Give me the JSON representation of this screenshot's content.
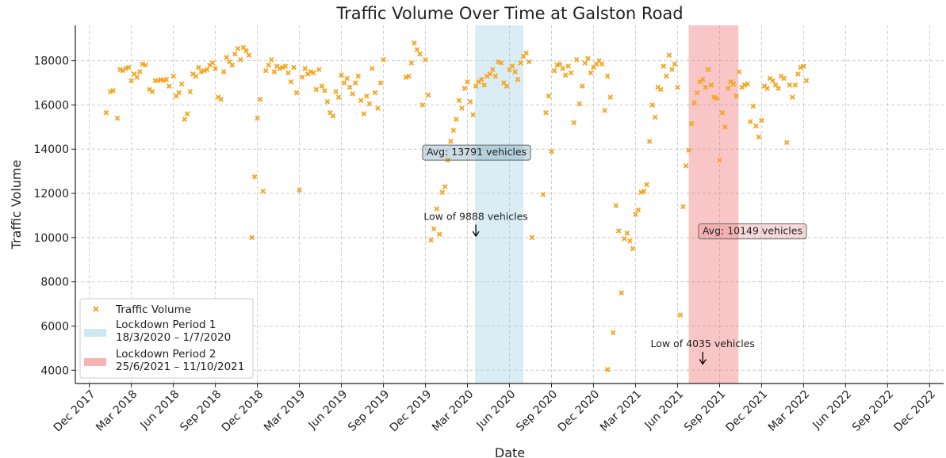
{
  "chart_data": {
    "type": "scatter",
    "title": "Traffic Volume Over Time at Galston Road",
    "xlabel": "Date",
    "ylabel": "Traffic Volume",
    "ylim": [
      3400,
      19600
    ],
    "xlim_months": [
      -1.0,
      61.0
    ],
    "y_ticks": [
      4000,
      6000,
      8000,
      10000,
      12000,
      14000,
      16000,
      18000
    ],
    "x_ticks": [
      {
        "label": "Dec 2017",
        "m": 0
      },
      {
        "label": "Mar 2018",
        "m": 3
      },
      {
        "label": "Jun 2018",
        "m": 6
      },
      {
        "label": "Sep 2018",
        "m": 9
      },
      {
        "label": "Dec 2018",
        "m": 12
      },
      {
        "label": "Mar 2019",
        "m": 15
      },
      {
        "label": "Jun 2019",
        "m": 18
      },
      {
        "label": "Sep 2019",
        "m": 21
      },
      {
        "label": "Dec 2019",
        "m": 24
      },
      {
        "label": "Mar 2020",
        "m": 27
      },
      {
        "label": "Jun 2020",
        "m": 30
      },
      {
        "label": "Sep 2020",
        "m": 33
      },
      {
        "label": "Dec 2020",
        "m": 36
      },
      {
        "label": "Mar 2021",
        "m": 39
      },
      {
        "label": "Jun 2021",
        "m": 42
      },
      {
        "label": "Sep 2021",
        "m": 45
      },
      {
        "label": "Dec 2021",
        "m": 48
      },
      {
        "label": "Mar 2022",
        "m": 51
      },
      {
        "label": "Jun 2022",
        "m": 54
      },
      {
        "label": "Sep 2022",
        "m": 57
      },
      {
        "label": "Dec 2022",
        "m": 60
      }
    ],
    "series": [
      {
        "name": "Traffic Volume",
        "color": "#F5A623",
        "marker": "x",
        "points": [
          [
            1.2,
            15650
          ],
          [
            1.5,
            16600
          ],
          [
            1.7,
            16650
          ],
          [
            2.0,
            15400
          ],
          [
            2.2,
            17600
          ],
          [
            2.4,
            17550
          ],
          [
            2.6,
            17650
          ],
          [
            2.8,
            17700
          ],
          [
            3.0,
            17100
          ],
          [
            3.2,
            17400
          ],
          [
            3.4,
            17250
          ],
          [
            3.6,
            17500
          ],
          [
            3.8,
            17850
          ],
          [
            4.0,
            17800
          ],
          [
            4.3,
            16700
          ],
          [
            4.5,
            16600
          ],
          [
            4.7,
            17100
          ],
          [
            4.9,
            17100
          ],
          [
            5.1,
            17150
          ],
          [
            5.3,
            17100
          ],
          [
            5.5,
            17150
          ],
          [
            5.7,
            16850
          ],
          [
            6.0,
            17300
          ],
          [
            6.2,
            16400
          ],
          [
            6.4,
            16550
          ],
          [
            6.6,
            16950
          ],
          [
            6.8,
            15350
          ],
          [
            7.0,
            15600
          ],
          [
            7.2,
            16600
          ],
          [
            7.4,
            17400
          ],
          [
            7.6,
            17300
          ],
          [
            7.8,
            17700
          ],
          [
            8.0,
            17500
          ],
          [
            8.2,
            17550
          ],
          [
            8.4,
            17600
          ],
          [
            8.6,
            17800
          ],
          [
            8.8,
            17900
          ],
          [
            9.0,
            17650
          ],
          [
            9.2,
            16350
          ],
          [
            9.4,
            16250
          ],
          [
            9.6,
            17500
          ],
          [
            9.8,
            18150
          ],
          [
            10.0,
            17950
          ],
          [
            10.2,
            17800
          ],
          [
            10.4,
            18300
          ],
          [
            10.6,
            18550
          ],
          [
            10.8,
            18050
          ],
          [
            11.0,
            18600
          ],
          [
            11.2,
            18450
          ],
          [
            11.4,
            18250
          ],
          [
            11.6,
            10000
          ],
          [
            11.8,
            12750
          ],
          [
            12.0,
            15400
          ],
          [
            12.2,
            16250
          ],
          [
            12.4,
            12100
          ],
          [
            12.6,
            17550
          ],
          [
            12.8,
            17800
          ],
          [
            13.0,
            18050
          ],
          [
            13.2,
            17500
          ],
          [
            13.4,
            17750
          ],
          [
            13.6,
            17650
          ],
          [
            13.8,
            17700
          ],
          [
            14.0,
            17750
          ],
          [
            14.2,
            17450
          ],
          [
            14.4,
            17050
          ],
          [
            14.6,
            17700
          ],
          [
            14.8,
            16550
          ],
          [
            15.0,
            12150
          ],
          [
            15.2,
            17250
          ],
          [
            15.4,
            17650
          ],
          [
            15.6,
            17400
          ],
          [
            15.8,
            17500
          ],
          [
            16.0,
            17450
          ],
          [
            16.2,
            16700
          ],
          [
            16.4,
            17600
          ],
          [
            16.6,
            16850
          ],
          [
            16.8,
            16650
          ],
          [
            17.0,
            16150
          ],
          [
            17.2,
            15650
          ],
          [
            17.4,
            15500
          ],
          [
            17.6,
            16600
          ],
          [
            17.8,
            16350
          ],
          [
            18.0,
            17350
          ],
          [
            18.2,
            17000
          ],
          [
            18.4,
            17200
          ],
          [
            18.6,
            16800
          ],
          [
            18.8,
            16500
          ],
          [
            19.0,
            17000
          ],
          [
            19.2,
            17300
          ],
          [
            19.4,
            16200
          ],
          [
            19.6,
            15600
          ],
          [
            19.8,
            16400
          ],
          [
            20.0,
            16050
          ],
          [
            20.2,
            17650
          ],
          [
            20.4,
            16550
          ],
          [
            20.6,
            15850
          ],
          [
            20.8,
            17000
          ],
          [
            21.0,
            18050
          ],
          [
            22.6,
            17250
          ],
          [
            22.8,
            17300
          ],
          [
            23.0,
            17900
          ],
          [
            23.2,
            18800
          ],
          [
            23.4,
            18500
          ],
          [
            23.6,
            18300
          ],
          [
            23.8,
            16000
          ],
          [
            24.0,
            18050
          ],
          [
            24.2,
            16450
          ],
          [
            24.4,
            9888
          ],
          [
            24.6,
            10400
          ],
          [
            24.8,
            11300
          ],
          [
            25.0,
            10150
          ],
          [
            25.2,
            12050
          ],
          [
            25.4,
            12300
          ],
          [
            25.6,
            13500
          ],
          [
            25.8,
            14350
          ],
          [
            26.0,
            14850
          ],
          [
            26.2,
            15350
          ],
          [
            26.4,
            16200
          ],
          [
            26.6,
            15850
          ],
          [
            26.8,
            16750
          ],
          [
            27.0,
            17050
          ],
          [
            27.2,
            16150
          ],
          [
            27.4,
            15550
          ],
          [
            27.6,
            16850
          ],
          [
            27.8,
            17050
          ],
          [
            28.0,
            17150
          ],
          [
            28.2,
            16900
          ],
          [
            28.4,
            17300
          ],
          [
            28.6,
            17400
          ],
          [
            28.8,
            17600
          ],
          [
            29.0,
            17300
          ],
          [
            29.2,
            17950
          ],
          [
            29.4,
            17900
          ],
          [
            29.6,
            17000
          ],
          [
            29.8,
            16850
          ],
          [
            30.0,
            17600
          ],
          [
            30.2,
            17750
          ],
          [
            30.4,
            17500
          ],
          [
            30.6,
            17150
          ],
          [
            30.8,
            17900
          ],
          [
            31.0,
            18200
          ],
          [
            31.2,
            18350
          ],
          [
            31.4,
            17950
          ],
          [
            31.6,
            10000
          ],
          [
            32.4,
            11950
          ],
          [
            32.6,
            15650
          ],
          [
            32.8,
            16400
          ],
          [
            33.0,
            13900
          ],
          [
            33.2,
            17550
          ],
          [
            33.4,
            17800
          ],
          [
            33.6,
            17850
          ],
          [
            33.8,
            17650
          ],
          [
            34.0,
            17350
          ],
          [
            34.2,
            17750
          ],
          [
            34.4,
            17450
          ],
          [
            34.6,
            15200
          ],
          [
            34.8,
            18050
          ],
          [
            35.0,
            16050
          ],
          [
            35.2,
            16850
          ],
          [
            35.4,
            17900
          ],
          [
            35.6,
            18100
          ],
          [
            35.8,
            17450
          ],
          [
            36.0,
            17700
          ],
          [
            36.2,
            17850
          ],
          [
            36.4,
            18000
          ],
          [
            36.6,
            17850
          ],
          [
            36.8,
            15750
          ],
          [
            37.0,
            17300
          ],
          [
            37.2,
            16350
          ],
          [
            37.4,
            5700
          ],
          [
            37.6,
            11450
          ],
          [
            37.8,
            10300
          ],
          [
            38.0,
            7500
          ],
          [
            38.2,
            9950
          ],
          [
            38.4,
            10200
          ],
          [
            38.6,
            9850
          ],
          [
            38.8,
            9500
          ],
          [
            39.0,
            11050
          ],
          [
            39.2,
            11250
          ],
          [
            39.4,
            12050
          ],
          [
            39.6,
            12100
          ],
          [
            39.8,
            12400
          ],
          [
            40.0,
            14350
          ],
          [
            40.2,
            16000
          ],
          [
            40.4,
            15450
          ],
          [
            40.6,
            16800
          ],
          [
            40.8,
            16700
          ],
          [
            41.0,
            17750
          ],
          [
            41.2,
            17300
          ],
          [
            41.4,
            18250
          ],
          [
            41.6,
            17600
          ],
          [
            41.8,
            17850
          ],
          [
            42.0,
            16800
          ],
          [
            42.2,
            6500
          ],
          [
            42.4,
            11400
          ],
          [
            42.6,
            13250
          ],
          [
            42.8,
            13950
          ],
          [
            43.0,
            15150
          ],
          [
            43.2,
            16100
          ],
          [
            43.4,
            16550
          ],
          [
            43.6,
            17050
          ],
          [
            43.8,
            17150
          ],
          [
            44.0,
            16800
          ],
          [
            44.2,
            17600
          ],
          [
            44.4,
            16900
          ],
          [
            44.6,
            16350
          ],
          [
            44.8,
            16300
          ],
          [
            45.0,
            13500
          ],
          [
            45.2,
            15650
          ],
          [
            45.4,
            15000
          ],
          [
            45.6,
            16750
          ],
          [
            45.8,
            17050
          ],
          [
            46.0,
            16950
          ],
          [
            46.2,
            16400
          ],
          [
            46.4,
            17500
          ],
          [
            46.6,
            16800
          ],
          [
            46.8,
            16900
          ],
          [
            47.0,
            16950
          ],
          [
            47.2,
            15250
          ],
          [
            47.4,
            15950
          ],
          [
            47.6,
            15050
          ],
          [
            47.8,
            14550
          ],
          [
            48.0,
            15300
          ],
          [
            48.2,
            16850
          ],
          [
            48.4,
            16750
          ],
          [
            48.6,
            17200
          ],
          [
            48.8,
            17100
          ],
          [
            49.0,
            16900
          ],
          [
            49.2,
            16750
          ],
          [
            49.4,
            17300
          ],
          [
            49.6,
            17200
          ],
          [
            49.8,
            14300
          ],
          [
            50.0,
            16900
          ],
          [
            50.2,
            16350
          ],
          [
            50.4,
            16900
          ],
          [
            50.6,
            17400
          ],
          [
            50.8,
            17700
          ],
          [
            51.0,
            17750
          ],
          [
            51.2,
            17100
          ],
          [
            37.0,
            4035
          ]
        ]
      }
    ],
    "lockdowns": [
      {
        "label": "Lockdown Period 1",
        "dates": "18/3/2020 – 1/7/2020",
        "m_start": 27.55,
        "m_end": 31.0,
        "color": "#ADD8E6",
        "alpha": 0.45
      },
      {
        "label": "Lockdown Period 2",
        "dates": "25/6/2021 – 11/10/2021",
        "m_start": 42.8,
        "m_end": 46.35,
        "color": "#F08080",
        "alpha": 0.45
      }
    ],
    "annotations": [
      {
        "text": "Avg: 13791 vehicles",
        "x_m": 27.65,
        "y": 13860,
        "boxed": true,
        "box_color": "#5B8FA8"
      },
      {
        "text": "Avg: 10149 vehicles",
        "x_m": 47.35,
        "y": 10300,
        "boxed": true,
        "box_color": "#E08080"
      },
      {
        "text": "Low of 9888 vehicles",
        "x_m": 27.6,
        "y": 10800,
        "arrow_to_y": 9888
      },
      {
        "text": "Low of 4035 vehicles",
        "x_m": 43.8,
        "y": 5050,
        "arrow_to_y": 4100
      }
    ],
    "legend": {
      "position": "bottom-left",
      "entries": [
        {
          "type": "marker",
          "label": "Traffic Volume"
        },
        {
          "type": "patch",
          "index": 0
        },
        {
          "type": "patch",
          "index": 1
        }
      ]
    },
    "grid": true
  }
}
